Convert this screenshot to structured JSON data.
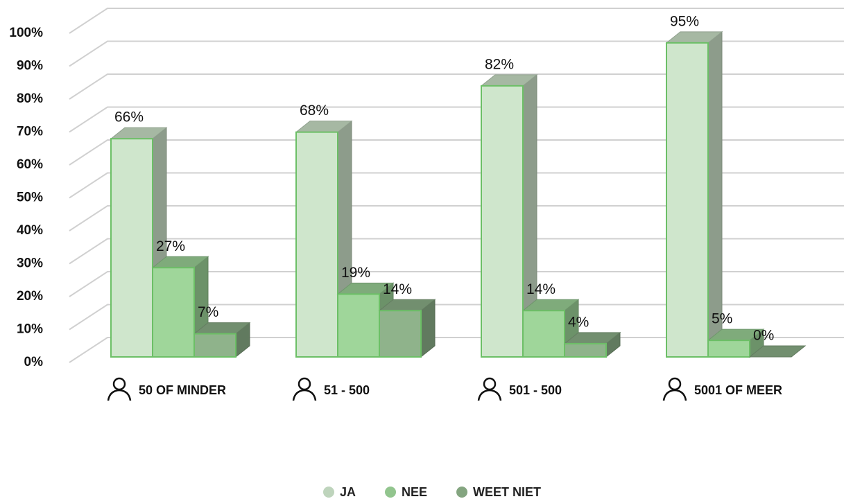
{
  "chart_data": {
    "type": "bar3d",
    "categories": [
      "50 OF MINDER",
      "51 - 500",
      "501 - 500",
      "5001 OF MEER"
    ],
    "series": [
      {
        "name": "JA",
        "color": "#cfe6cc",
        "values": [
          66,
          68,
          82,
          95
        ],
        "value_labels": [
          "66%",
          "68%",
          "82%",
          "95%"
        ]
      },
      {
        "name": "NEE",
        "color": "#9fd69a",
        "values": [
          27,
          19,
          14,
          5
        ],
        "value_labels": [
          "27%",
          "19%",
          "14%",
          "5%"
        ]
      },
      {
        "name": "WEET NIET",
        "color": "#8fb38b",
        "values": [
          7,
          14,
          4,
          0
        ],
        "value_labels": [
          "7%",
          "14%",
          "4%",
          "0%"
        ]
      }
    ],
    "ylim": [
      0,
      100
    ],
    "yticks": [
      {
        "value": 0,
        "label": "0%"
      },
      {
        "value": 10,
        "label": "10%"
      },
      {
        "value": 20,
        "label": "20%"
      },
      {
        "value": 30,
        "label": "30%"
      },
      {
        "value": 40,
        "label": "40%"
      },
      {
        "value": 50,
        "label": "50%"
      },
      {
        "value": 60,
        "label": "60%"
      },
      {
        "value": 70,
        "label": "70%"
      },
      {
        "value": 80,
        "label": "80%"
      },
      {
        "value": 90,
        "label": "90%"
      },
      {
        "value": 100,
        "label": "100%"
      }
    ],
    "grid": true,
    "legend": "bottom"
  }
}
